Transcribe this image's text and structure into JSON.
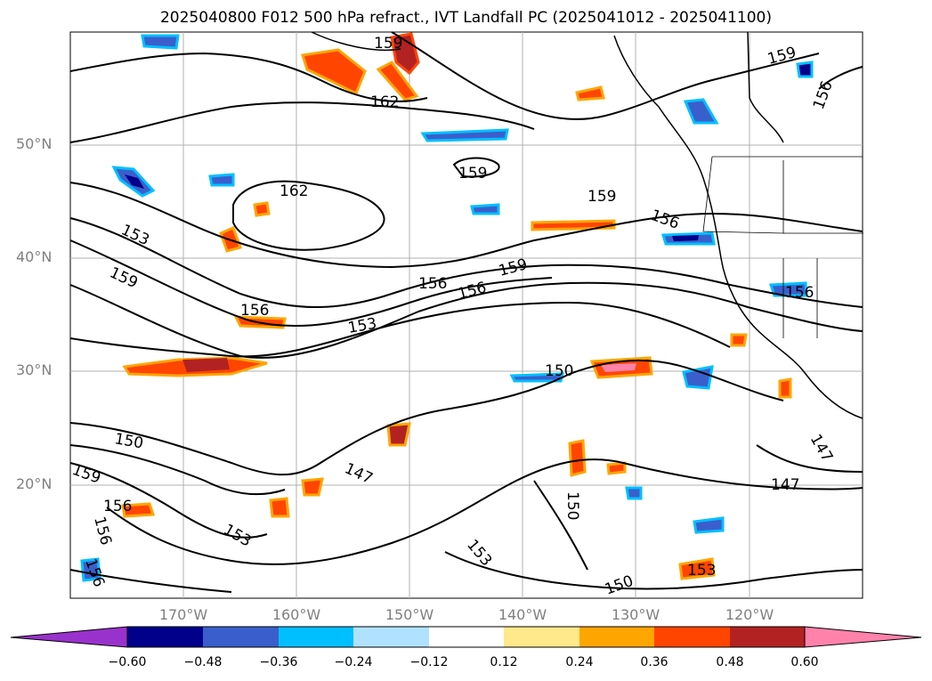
{
  "title": "2025040800 F012 500 hPa refract., IVT Landfall PC (2025041012 - 2025041100)",
  "map": {
    "lat_labels": [
      "50°N",
      "40°N",
      "30°N",
      "20°N"
    ],
    "lon_labels": [
      "170°W",
      "160°W",
      "150°W",
      "140°W",
      "130°W",
      "120°W"
    ],
    "contour_labels": [
      "159",
      "162",
      "159",
      "162",
      "159",
      "156",
      "153",
      "159",
      "156",
      "156",
      "159",
      "156",
      "153",
      "150",
      "150",
      "159",
      "156",
      "156",
      "147",
      "153",
      "150",
      "153",
      "150",
      "153",
      "156",
      "147",
      "147",
      "159",
      "156",
      "156"
    ]
  },
  "colorbar": {
    "ticks": [
      "−0.60",
      "−0.48",
      "−0.36",
      "−0.24",
      "−0.12",
      "0.12",
      "0.24",
      "0.36",
      "0.48",
      "0.60"
    ],
    "colors": [
      "#9932cc",
      "#00008b",
      "#3a5fcd",
      "#00bfff",
      "#b0e2ff",
      "#ffffff",
      "#ffe98a",
      "#ffa500",
      "#ff4500",
      "#b22222",
      "#ff82ab"
    ]
  }
}
